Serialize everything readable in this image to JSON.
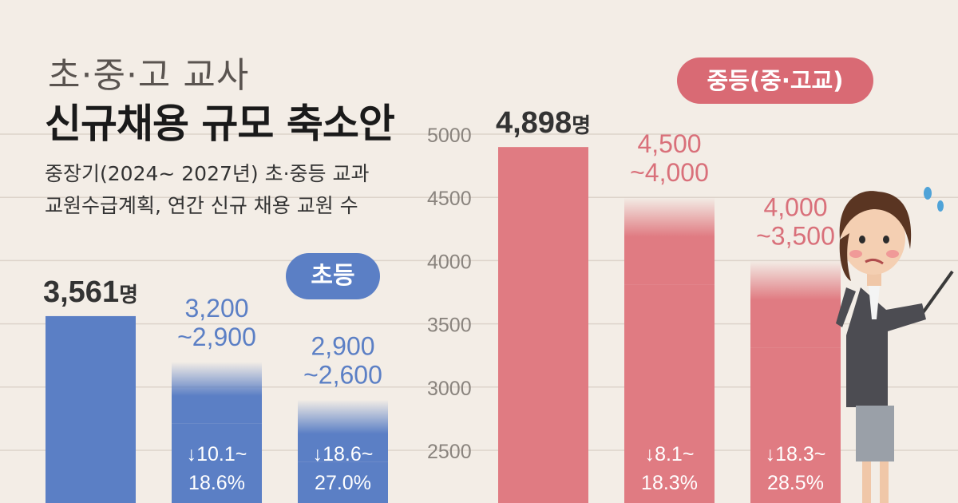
{
  "title": {
    "kicker": "초·중·고 교사",
    "headline": "신규채용 규모 축소안",
    "sub_line1": "중장기(2024~ 2027년) 초·중등 교과",
    "sub_line2": "교원수급계획, 연간 신규 채용 교원 수"
  },
  "badges": {
    "elementary": "초등",
    "secondary": "중등(중·고교)"
  },
  "colors": {
    "elementary": "#5b7fc5",
    "secondary": "#e07b82",
    "secondary_label": "#d9707a",
    "background": "#f3ede6"
  },
  "chart_data": [
    {
      "type": "bar",
      "group": "초등",
      "categories": [
        "",
        "",
        ""
      ],
      "values": [
        3561,
        3200,
        2900
      ],
      "value_ranges": [
        [
          3561,
          3561
        ],
        [
          3200,
          2900
        ],
        [
          2900,
          2600
        ]
      ],
      "value_labels": [
        {
          "main": "3,561",
          "unit": "명"
        },
        {
          "line1": "3,200",
          "line2": "~2,900"
        },
        {
          "line1": "2,900",
          "line2": "~2,600"
        }
      ],
      "change_labels": [
        null,
        {
          "line1": "↓10.1~",
          "line2": "18.6%"
        },
        {
          "line1": "↓18.6~",
          "line2": "27.0%"
        }
      ]
    },
    {
      "type": "bar",
      "group": "중등(중·고교)",
      "categories": [
        "",
        "",
        ""
      ],
      "values": [
        4898,
        4500,
        4000
      ],
      "value_ranges": [
        [
          4898,
          4898
        ],
        [
          4500,
          4000
        ],
        [
          4000,
          3500
        ]
      ],
      "value_labels": [
        {
          "main": "4,898",
          "unit": "명"
        },
        {
          "line1": "4,500",
          "line2": "~4,000"
        },
        {
          "line1": "4,000",
          "line2": "~3,500"
        }
      ],
      "change_labels": [
        null,
        {
          "line1": "↓8.1~",
          "line2": "18.3%"
        },
        {
          "line1": "↓18.3~",
          "line2": "28.5%"
        }
      ],
      "y_ticks": [
        "5000",
        "4500",
        "4000",
        "3500",
        "3000",
        "2500"
      ],
      "y_tick_values": [
        5000,
        4500,
        4000,
        3500,
        3000,
        2500
      ],
      "grid": true
    }
  ]
}
